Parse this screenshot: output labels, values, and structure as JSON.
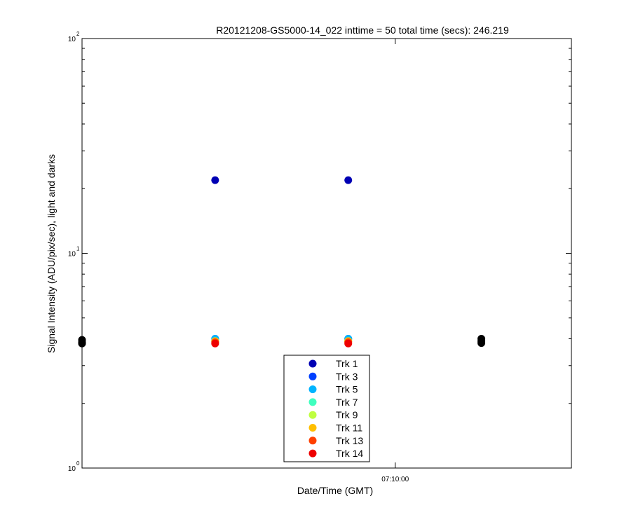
{
  "chart_data": {
    "type": "scatter",
    "title": "R20121208-GS5000-14_022 inttime = 50 total time (secs): 246.219",
    "xlabel": "Date/Time (GMT)",
    "ylabel": "Signal Intensity (ADU/pix/sec), light and darks",
    "yscale": "log",
    "ylim": [
      1,
      100
    ],
    "xlim": [
      "07:07:20",
      "07:11:30"
    ],
    "x_ticks": [
      "07:10:00"
    ],
    "y_ticks": [
      {
        "base": "10",
        "exp": "0"
      },
      {
        "base": "10",
        "exp": "1"
      },
      {
        "base": "10",
        "exp": "2"
      }
    ],
    "series": [
      {
        "name": "Trk 1",
        "color": "#0000b4",
        "points": [
          [
            "07:08:28",
            21.9
          ],
          [
            "07:09:36",
            21.9
          ]
        ]
      },
      {
        "name": "Trk 3",
        "color": "#0040ff",
        "points": [
          [
            "07:08:28",
            4.0
          ],
          [
            "07:09:36",
            4.0
          ]
        ]
      },
      {
        "name": "Trk 5",
        "color": "#00b4ff",
        "points": [
          [
            "07:08:28",
            4.0
          ],
          [
            "07:09:36",
            4.0
          ]
        ]
      },
      {
        "name": "Trk 7",
        "color": "#40ffbf",
        "points": [
          [
            "07:08:28",
            3.9
          ],
          [
            "07:09:36",
            3.9
          ]
        ]
      },
      {
        "name": "Trk 9",
        "color": "#bfff40",
        "points": [
          [
            "07:08:28",
            3.9
          ],
          [
            "07:09:36",
            3.9
          ]
        ]
      },
      {
        "name": "Trk 11",
        "color": "#ffbf00",
        "points": [
          [
            "07:08:28",
            3.9
          ],
          [
            "07:09:36",
            3.9
          ]
        ]
      },
      {
        "name": "Trk 13",
        "color": "#ff4000",
        "points": [
          [
            "07:08:28",
            3.85
          ],
          [
            "07:09:36",
            3.85
          ]
        ]
      },
      {
        "name": "Trk 14",
        "color": "#ee0000",
        "points": [
          [
            "07:08:28",
            3.8
          ],
          [
            "07:09:36",
            3.8
          ]
        ]
      }
    ],
    "dark_points": {
      "color": "#000000",
      "points": [
        [
          "07:07:20",
          3.95
        ],
        [
          "07:07:20",
          3.85
        ],
        [
          "07:07:20",
          3.8
        ],
        [
          "07:10:44",
          4.0
        ],
        [
          "07:10:44",
          3.9
        ],
        [
          "07:10:44",
          3.82
        ]
      ]
    },
    "legend_position": "bottom-center",
    "grid": false
  }
}
